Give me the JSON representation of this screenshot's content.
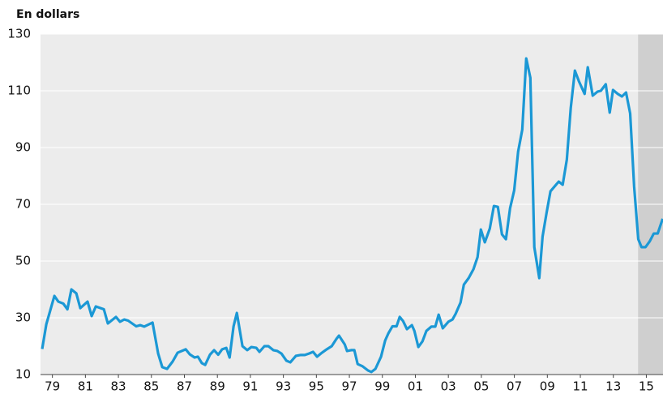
{
  "chart_data": {
    "type": "line",
    "title": "En dollars",
    "x": [
      1978.88,
      1979.13,
      1979.62,
      1979.86,
      1980.16,
      1980.41,
      1980.65,
      1980.95,
      1981.19,
      1981.63,
      1981.88,
      1982.13,
      1982.62,
      1982.86,
      1983.35,
      1983.6,
      1983.85,
      1984.09,
      1984.58,
      1984.83,
      1985.07,
      1985.57,
      1985.91,
      1986.16,
      1986.45,
      1986.79,
      1987.09,
      1987.58,
      1987.83,
      1988.12,
      1988.32,
      1988.56,
      1988.76,
      1989.05,
      1989.3,
      1989.55,
      1989.79,
      1990.04,
      1990.24,
      1990.48,
      1990.68,
      1991.02,
      1991.31,
      1991.56,
      1991.86,
      1992.05,
      1992.35,
      1992.59,
      1992.89,
      1993.13,
      1993.38,
      1993.68,
      1993.92,
      1994.26,
      1994.56,
      1994.8,
      1995.05,
      1995.3,
      1995.54,
      1995.84,
      1996.13,
      1996.43,
      1996.72,
      1996.87,
      1997.22,
      1997.36,
      1997.61,
      1997.8,
      1998.0,
      1998.3,
      1998.64,
      1998.83,
      1999.08,
      1999.42,
      1999.67,
      1999.87,
      2000.11,
      2000.36,
      2000.55,
      2000.75,
      2000.99,
      2001.29,
      2001.44,
      2001.68,
      2001.93,
      2002.17,
      2002.47,
      2002.71,
      2002.91,
      2003.16,
      2003.5,
      2003.75,
      2003.94,
      2004.24,
      2004.44,
      2004.73,
      2005.02,
      2005.27,
      2005.47,
      2005.71,
      2006.01,
      2006.26,
      2006.5,
      2006.75,
      2006.99,
      2007.24,
      2007.49,
      2007.73,
      2007.98,
      2008.22,
      2008.47,
      2008.71,
      2009.01,
      2009.21,
      2009.45,
      2009.69,
      2009.94,
      2010.19,
      2010.43,
      2010.68,
      2010.92,
      2011.17,
      2011.41,
      2011.76,
      2011.95,
      2012.25,
      2012.54,
      2012.74,
      2013.04,
      2013.28,
      2013.48,
      2013.77,
      2014.02,
      2014.27,
      2014.52,
      2014.76,
      2015.01,
      2015.21,
      2015.45,
      2015.7,
      2015.95,
      2016.19,
      2016.49
    ],
    "series": [
      {
        "color": "#1b98d5",
        "values": [
          19,
          27.7,
          37.7,
          35.7,
          35,
          33,
          40,
          38.6,
          33.4,
          35.7,
          30.6,
          34,
          33,
          28,
          30.3,
          28.6,
          29.4,
          29,
          27,
          27.4,
          26.9,
          28.3,
          17.4,
          12.6,
          12,
          14.6,
          17.7,
          18.9,
          17.1,
          16,
          16.3,
          14,
          13.4,
          17,
          18.6,
          17,
          18.9,
          19.4,
          16,
          27,
          31.7,
          20,
          18.6,
          19.7,
          19.4,
          18,
          20,
          20,
          18.6,
          18.3,
          17.4,
          14.9,
          14.3,
          16.6,
          16.9,
          16.9,
          17.4,
          18,
          16.3,
          17.7,
          18.9,
          20,
          22.6,
          23.7,
          20.6,
          18.3,
          18.6,
          18.6,
          13.7,
          12.9,
          11.4,
          10.9,
          12,
          16.3,
          22,
          24.6,
          27,
          27,
          30.3,
          28.9,
          26,
          27.4,
          25.4,
          19.7,
          21.7,
          25.4,
          26.9,
          26.9,
          31.1,
          26.3,
          28.6,
          29.4,
          31.4,
          35.4,
          41.7,
          44,
          47.1,
          51.4,
          61.1,
          56.6,
          61.4,
          69.4,
          69.1,
          59.4,
          57.7,
          68.6,
          74.9,
          88.6,
          96.3,
          121.4,
          114.6,
          54.9,
          44,
          58.6,
          66.9,
          74.6,
          76.3,
          78,
          76.9,
          85.7,
          104,
          117.1,
          113.4,
          108.9,
          118.3,
          108.3,
          109.7,
          110,
          112.3,
          102.3,
          110.3,
          108.9,
          108,
          109.4,
          102,
          76.3,
          57.7,
          54.9,
          54.9,
          56.9,
          59.7,
          59.7,
          64.9
        ]
      }
    ],
    "xlim": [
      1978.78,
      2016.51
    ],
    "xticks": [
      {
        "value": 1979.5,
        "label": "79"
      },
      {
        "value": 1981.5,
        "label": "81"
      },
      {
        "value": 1983.5,
        "label": "83"
      },
      {
        "value": 1985.5,
        "label": "85"
      },
      {
        "value": 1987.5,
        "label": "87"
      },
      {
        "value": 1989.5,
        "label": "89"
      },
      {
        "value": 1991.5,
        "label": "91"
      },
      {
        "value": 1993.5,
        "label": "93"
      },
      {
        "value": 1995.5,
        "label": "95"
      },
      {
        "value": 1997.5,
        "label": "97"
      },
      {
        "value": 1999.5,
        "label": "99"
      },
      {
        "value": 2001.5,
        "label": "01"
      },
      {
        "value": 2003.5,
        "label": "03"
      },
      {
        "value": 2005.5,
        "label": "05"
      },
      {
        "value": 2007.5,
        "label": "07"
      },
      {
        "value": 2009.5,
        "label": "09"
      },
      {
        "value": 2011.5,
        "label": "11"
      },
      {
        "value": 2013.5,
        "label": "13"
      },
      {
        "value": 2015.5,
        "label": "15"
      }
    ],
    "ylim": [
      10,
      130
    ],
    "yticks": [
      10,
      30,
      50,
      70,
      90,
      110,
      130
    ],
    "grid": true,
    "shaded_region": [
      2015,
      2016.51
    ]
  }
}
